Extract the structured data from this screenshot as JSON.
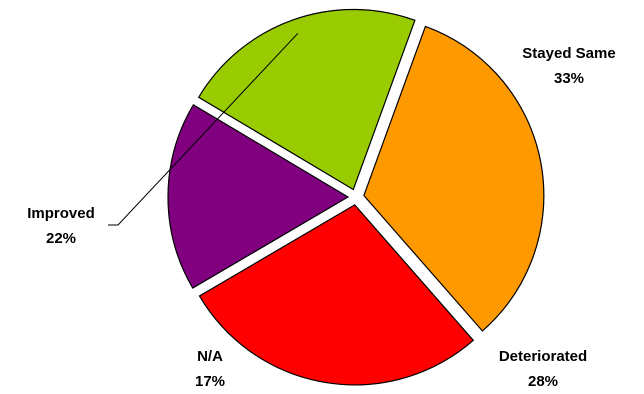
{
  "chart_data": {
    "type": "pie",
    "title": "",
    "exploded": true,
    "slices": [
      {
        "label": "Stayed Same",
        "value": 33,
        "pct_label": "33%",
        "color": "#FF9900"
      },
      {
        "label": "Deteriorated",
        "value": 28,
        "pct_label": "28%",
        "color": "#FF0000"
      },
      {
        "label": "N/A",
        "value": 17,
        "pct_label": "17%",
        "color": "#800080"
      },
      {
        "label": "Improved",
        "value": 22,
        "pct_label": "22%",
        "color": "#99CC00"
      }
    ],
    "start_angle_deg": 20,
    "direction": "clockwise",
    "legend": "none",
    "data_labels": "category-and-percent"
  }
}
